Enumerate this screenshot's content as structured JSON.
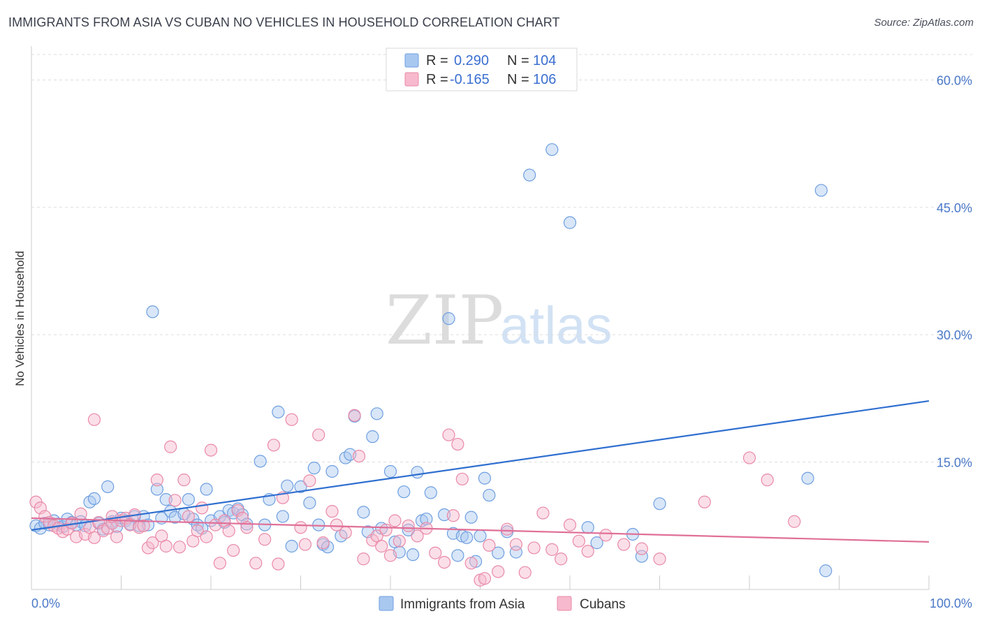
{
  "title": "IMMIGRANTS FROM ASIA VS CUBAN NO VEHICLES IN HOUSEHOLD CORRELATION CHART",
  "source": "Source: ZipAtlas.com",
  "watermark": {
    "zip": "ZIP",
    "atlas": "atlas"
  },
  "legend_box": {
    "rows": [
      {
        "r_label": "R = ",
        "r_value": "0.290",
        "n_label": "N = ",
        "n_value": "104",
        "color": "#a9c8f0",
        "stroke": "#6f9fe0"
      },
      {
        "r_label": "R = ",
        "r_value": "-0.165",
        "n_label": "N = ",
        "n_value": "106",
        "color": "#f7b9cd",
        "stroke": "#e98aa8"
      }
    ]
  },
  "bottom_legend": [
    {
      "label": "Immigrants from Asia",
      "color": "#a9c8f0",
      "stroke": "#6f9fe0"
    },
    {
      "label": "Cubans",
      "color": "#f7b9cd",
      "stroke": "#e98aa8"
    }
  ],
  "chart_data": {
    "type": "scatter",
    "title": "IMMIGRANTS FROM ASIA VS CUBAN NO VEHICLES IN HOUSEHOLD CORRELATION CHART",
    "xlabel": "",
    "ylabel": "No Vehicles in Household",
    "xlim": [
      0,
      100
    ],
    "ylim": [
      0,
      63
    ],
    "x_tick_labels": [
      "0.0%",
      "100.0%"
    ],
    "y_ticks": [
      15,
      30,
      45,
      60
    ],
    "y_tick_labels": [
      "15.0%",
      "30.0%",
      "45.0%",
      "60.0%"
    ],
    "grid": true,
    "legend_position": "top-center",
    "series": [
      {
        "name": "Immigrants from Asia",
        "color": "#6f9fe0",
        "fill": "#a9c8f0",
        "trend": {
          "x": [
            0,
            100
          ],
          "y": [
            7.0,
            22.2
          ],
          "color": "#2f6fd0"
        },
        "points": [
          [
            0.5,
            7.5
          ],
          [
            1,
            7.2
          ],
          [
            1.5,
            7.8
          ],
          [
            2,
            7.6
          ],
          [
            2.5,
            8.1
          ],
          [
            3,
            7.7
          ],
          [
            3.5,
            7.4
          ],
          [
            4,
            8.3
          ],
          [
            4.5,
            7.9
          ],
          [
            5,
            7.6
          ],
          [
            5.5,
            8.0
          ],
          [
            6,
            7.5
          ],
          [
            6.5,
            10.3
          ],
          [
            7,
            10.7
          ],
          [
            7.5,
            7.8
          ],
          [
            8,
            7.1
          ],
          [
            8.5,
            12.1
          ],
          [
            9,
            8.0
          ],
          [
            9.5,
            7.4
          ],
          [
            10,
            8.4
          ],
          [
            10.5,
            8.1
          ],
          [
            11,
            7.7
          ],
          [
            11.5,
            8.6
          ],
          [
            12,
            7.5
          ],
          [
            12.5,
            8.6
          ],
          [
            13,
            7.6
          ],
          [
            13.5,
            32.7
          ],
          [
            14,
            11.8
          ],
          [
            14.5,
            8.4
          ],
          [
            15,
            10.6
          ],
          [
            15.5,
            9.2
          ],
          [
            16,
            8.5
          ],
          [
            17,
            8.9
          ],
          [
            17.5,
            10.6
          ],
          [
            18,
            8.3
          ],
          [
            18.5,
            7.6
          ],
          [
            19,
            7.2
          ],
          [
            19.5,
            11.8
          ],
          [
            20,
            8.1
          ],
          [
            21,
            8.6
          ],
          [
            21.5,
            7.9
          ],
          [
            22,
            9.3
          ],
          [
            22.5,
            9.0
          ],
          [
            23,
            9.5
          ],
          [
            23.5,
            8.8
          ],
          [
            24,
            7.7
          ],
          [
            25.5,
            15.1
          ],
          [
            26,
            7.6
          ],
          [
            26.5,
            10.6
          ],
          [
            27.5,
            20.9
          ],
          [
            28,
            8.6
          ],
          [
            28.5,
            12.2
          ],
          [
            29,
            5.1
          ],
          [
            30,
            12.1
          ],
          [
            31,
            10.2
          ],
          [
            31.5,
            14.3
          ],
          [
            32,
            7.6
          ],
          [
            32.5,
            5.3
          ],
          [
            33,
            5.0
          ],
          [
            33.5,
            13.9
          ],
          [
            34.5,
            6.3
          ],
          [
            35,
            15.5
          ],
          [
            35.5,
            15.9
          ],
          [
            36,
            20.4
          ],
          [
            37,
            9.1
          ],
          [
            37.5,
            6.8
          ],
          [
            38,
            18.0
          ],
          [
            38.5,
            20.7
          ],
          [
            39,
            7.2
          ],
          [
            40,
            13.9
          ],
          [
            40.5,
            5.6
          ],
          [
            41,
            4.4
          ],
          [
            41.5,
            11.5
          ],
          [
            42,
            7.0
          ],
          [
            42.5,
            4.1
          ],
          [
            43,
            13.8
          ],
          [
            43.5,
            8.1
          ],
          [
            44,
            8.3
          ],
          [
            44.5,
            11.4
          ],
          [
            46,
            8.8
          ],
          [
            46.5,
            31.9
          ],
          [
            47,
            6.6
          ],
          [
            47.5,
            4.0
          ],
          [
            48,
            6.3
          ],
          [
            48.5,
            6.1
          ],
          [
            49,
            8.5
          ],
          [
            49.5,
            3.3
          ],
          [
            50,
            6.3
          ],
          [
            50.5,
            13.1
          ],
          [
            51,
            11.1
          ],
          [
            52,
            4.3
          ],
          [
            53,
            6.8
          ],
          [
            54,
            4.4
          ],
          [
            55.5,
            48.8
          ],
          [
            58,
            51.8
          ],
          [
            60,
            43.2
          ],
          [
            62,
            7.3
          ],
          [
            63,
            5.5
          ],
          [
            70,
            10.1
          ],
          [
            88,
            47.0
          ],
          [
            88.5,
            2.2
          ],
          [
            86.5,
            13.1
          ],
          [
            68,
            3.9
          ],
          [
            67,
            6.5
          ]
        ]
      },
      {
        "name": "Cubans",
        "color": "#e98aa8",
        "fill": "#f7b9cd",
        "trend": {
          "x": [
            0,
            100
          ],
          "y": [
            8.4,
            5.6
          ],
          "color": "#e07098"
        },
        "points": [
          [
            0.5,
            10.3
          ],
          [
            1,
            9.6
          ],
          [
            1.5,
            8.6
          ],
          [
            2,
            7.9
          ],
          [
            2.5,
            7.5
          ],
          [
            3,
            7.2
          ],
          [
            3.5,
            6.8
          ],
          [
            4,
            7.1
          ],
          [
            4.5,
            7.8
          ],
          [
            5,
            6.2
          ],
          [
            5.5,
            8.9
          ],
          [
            6,
            6.5
          ],
          [
            6.5,
            7.3
          ],
          [
            7,
            6.1
          ],
          [
            7.5,
            7.9
          ],
          [
            8,
            6.9
          ],
          [
            8.5,
            7.2
          ],
          [
            9,
            7.8
          ],
          [
            9.5,
            6.2
          ],
          [
            10,
            8.1
          ],
          [
            10.5,
            8.4
          ],
          [
            11,
            7.6
          ],
          [
            11.5,
            8.8
          ],
          [
            12,
            7.3
          ],
          [
            12.5,
            7.5
          ],
          [
            13,
            4.9
          ],
          [
            13.5,
            5.5
          ],
          [
            14,
            12.9
          ],
          [
            14.5,
            6.3
          ],
          [
            15,
            5.1
          ],
          [
            15.5,
            16.8
          ],
          [
            16,
            10.5
          ],
          [
            16.5,
            5.0
          ],
          [
            17,
            12.9
          ],
          [
            17.5,
            8.6
          ],
          [
            18,
            5.7
          ],
          [
            18.5,
            6.9
          ],
          [
            19,
            9.6
          ],
          [
            19.5,
            6.2
          ],
          [
            20,
            16.4
          ],
          [
            20.5,
            7.6
          ],
          [
            21,
            3.1
          ],
          [
            21.5,
            8.1
          ],
          [
            22,
            6.9
          ],
          [
            22.5,
            4.6
          ],
          [
            23,
            9.3
          ],
          [
            23.5,
            8.4
          ],
          [
            24,
            7.3
          ],
          [
            25,
            3.1
          ],
          [
            26,
            5.9
          ],
          [
            27,
            17.0
          ],
          [
            27.5,
            3.0
          ],
          [
            28,
            10.8
          ],
          [
            29,
            20.0
          ],
          [
            30,
            7.3
          ],
          [
            30.5,
            5.3
          ],
          [
            31,
            12.8
          ],
          [
            32,
            18.2
          ],
          [
            32.5,
            5.5
          ],
          [
            33.5,
            9.2
          ],
          [
            34,
            7.6
          ],
          [
            35,
            6.7
          ],
          [
            36,
            20.5
          ],
          [
            36.5,
            15.7
          ],
          [
            37,
            3.6
          ],
          [
            38,
            5.8
          ],
          [
            38.5,
            6.3
          ],
          [
            39,
            5.1
          ],
          [
            39.5,
            7.0
          ],
          [
            40,
            4.0
          ],
          [
            40.5,
            8.1
          ],
          [
            41,
            5.7
          ],
          [
            42,
            7.5
          ],
          [
            43,
            6.3
          ],
          [
            44,
            7.2
          ],
          [
            45,
            4.3
          ],
          [
            46,
            3.2
          ],
          [
            46.5,
            18.2
          ],
          [
            47,
            8.7
          ],
          [
            47.5,
            17.1
          ],
          [
            48,
            13.0
          ],
          [
            49,
            3.1
          ],
          [
            50,
            1.1
          ],
          [
            50.5,
            1.3
          ],
          [
            51,
            5.2
          ],
          [
            52,
            2.1
          ],
          [
            53,
            7.1
          ],
          [
            54,
            5.3
          ],
          [
            55,
            2.0
          ],
          [
            56,
            4.9
          ],
          [
            57,
            9.0
          ],
          [
            58,
            4.7
          ],
          [
            59,
            3.6
          ],
          [
            60,
            7.6
          ],
          [
            61,
            5.7
          ],
          [
            62,
            4.5
          ],
          [
            64,
            6.4
          ],
          [
            66,
            5.3
          ],
          [
            68,
            4.8
          ],
          [
            70,
            3.6
          ],
          [
            75,
            10.3
          ],
          [
            80,
            15.5
          ],
          [
            82,
            12.9
          ],
          [
            85,
            8.0
          ],
          [
            7.0,
            20.0
          ],
          [
            9.0,
            8.6
          ]
        ]
      }
    ]
  }
}
